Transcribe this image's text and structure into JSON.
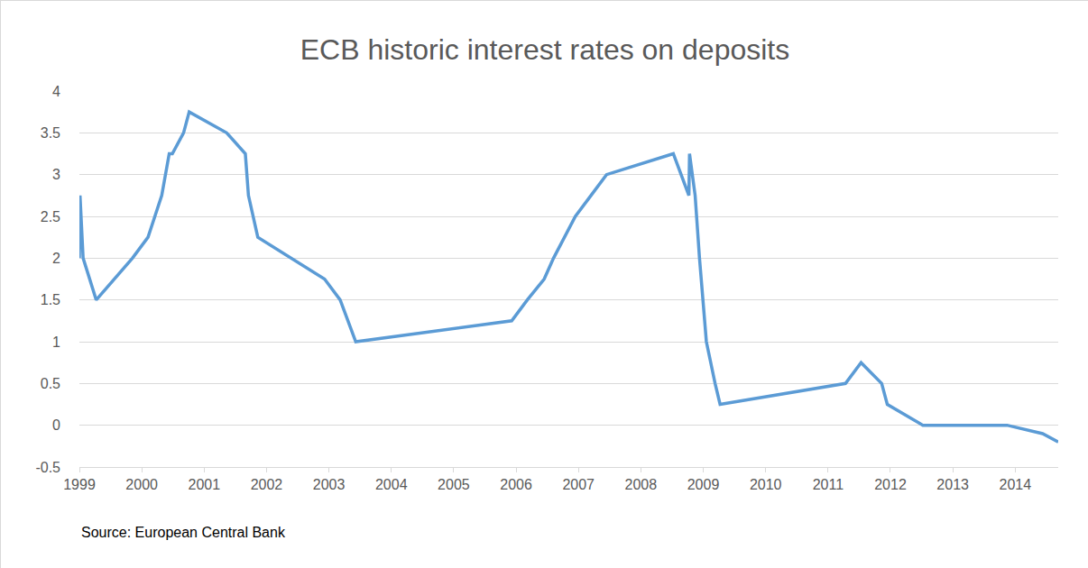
{
  "chart_data": {
    "type": "line",
    "title": "ECB historic interest rates on deposits",
    "source": "Source: European Central Bank",
    "x": [
      1999.0,
      1999.01,
      1999.06,
      1999.27,
      1999.85,
      2000.1,
      2000.21,
      2000.32,
      2000.44,
      2000.49,
      2000.67,
      2000.76,
      2001.36,
      2001.66,
      2001.71,
      2001.86,
      2002.93,
      2003.18,
      2003.43,
      2005.93,
      2006.18,
      2006.45,
      2006.6,
      2006.78,
      2006.95,
      2007.2,
      2007.45,
      2008.52,
      2008.77,
      2008.78,
      2008.87,
      2008.94,
      2009.05,
      2009.19,
      2009.27,
      2011.28,
      2011.53,
      2011.86,
      2011.95,
      2012.52,
      2013.35,
      2013.87,
      2014.44,
      2014.69
    ],
    "values": [
      2.0,
      2.75,
      2.0,
      1.5,
      2.0,
      2.25,
      2.5,
      2.75,
      3.25,
      3.25,
      3.5,
      3.75,
      3.5,
      3.25,
      2.75,
      2.25,
      1.75,
      1.5,
      1.0,
      1.25,
      1.5,
      1.75,
      2.0,
      2.25,
      2.5,
      2.75,
      3.0,
      3.25,
      2.75,
      3.25,
      2.75,
      2.0,
      1.0,
      0.5,
      0.25,
      0.5,
      0.75,
      0.5,
      0.25,
      0.0,
      0.0,
      0.0,
      -0.1,
      -0.2
    ],
    "color": "#5b9bd5",
    "xlim": [
      1999,
      2014.69
    ],
    "xticks": [
      1999,
      2000,
      2001,
      2002,
      2003,
      2004,
      2005,
      2006,
      2007,
      2008,
      2009,
      2010,
      2011,
      2012,
      2013,
      2014
    ],
    "ylim": [
      -0.5,
      4
    ],
    "yticks": [
      -0.5,
      0,
      0.5,
      1,
      1.5,
      2,
      2.5,
      3,
      3.5,
      4
    ],
    "grid": true
  }
}
